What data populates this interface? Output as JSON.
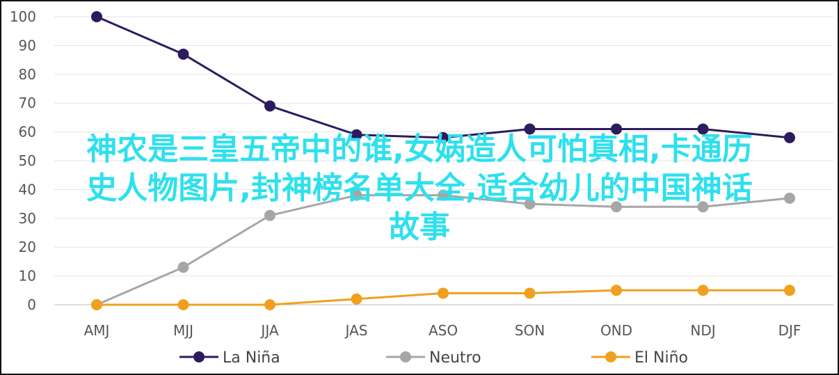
{
  "chart_data": {
    "type": "line",
    "categories": [
      "AMJ",
      "MJJ",
      "JJA",
      "JAS",
      "ASO",
      "SON",
      "OND",
      "NDJ",
      "DJF"
    ],
    "ylim": [
      0,
      100
    ],
    "yticks": [
      0,
      10,
      20,
      30,
      40,
      50,
      60,
      70,
      80,
      90,
      100
    ],
    "grid": true,
    "legend_position": "bottom",
    "series": [
      {
        "name": "La Niña",
        "color": "#2d1b5e",
        "values": [
          100,
          87,
          69,
          59,
          58,
          61,
          61,
          61,
          58
        ]
      },
      {
        "name": "Neutro",
        "color": "#a6a6a6",
        "values": [
          0,
          13,
          31,
          38,
          38,
          35,
          34,
          34,
          37
        ]
      },
      {
        "name": "El Niño",
        "color": "#f0a01e",
        "values": [
          0,
          0,
          0,
          2,
          4,
          4,
          5,
          5,
          5
        ]
      }
    ]
  },
  "overlay": {
    "line1": "神农是三皇五帝中的谁,女娲造人可怕真相,卡通历",
    "line2": "史人物图片,封神榜名单大全,适合幼儿的中国神话",
    "line3": "故事"
  }
}
